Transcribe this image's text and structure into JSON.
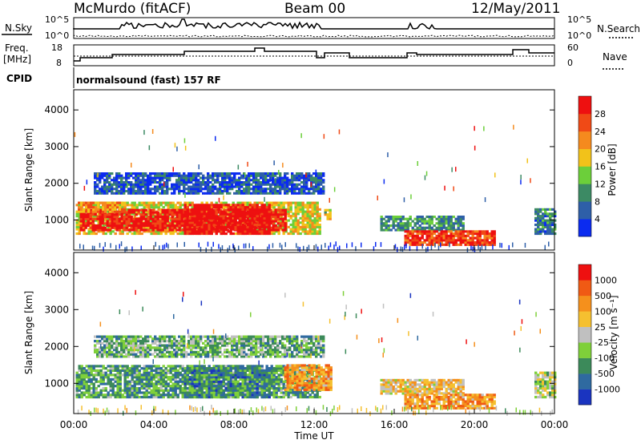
{
  "header": {
    "station": "McMurdo (fitACF)",
    "beam": "Beam 00",
    "date": "12/May/2011"
  },
  "noise_panel": {
    "left_label": "N.Sky",
    "right_label": "N.Search",
    "left_ticks": [
      "10^5",
      "10^0"
    ],
    "right_ticks": [
      "10^5",
      "10^0"
    ]
  },
  "freq_panel": {
    "left_label_1": "Freq.",
    "left_label_2": "[MHz]",
    "left_ticks": [
      "18",
      "8"
    ],
    "right_label": "Nave",
    "right_ticks": [
      "60",
      "0"
    ]
  },
  "cpid_panel": {
    "label": "CPID",
    "text": "normalsound (fast) 157 RF"
  },
  "chart_data": [
    {
      "type": "heatmap",
      "name": "power",
      "ylabel": "Slant Range [km]",
      "yticks": [
        "1000",
        "2000",
        "3000",
        "4000"
      ],
      "ylim": [
        180,
        4550
      ],
      "xlim": [
        0,
        24
      ],
      "colorbar": {
        "label": "Power [dB]",
        "ticks": [
          "4",
          "8",
          "12",
          "16",
          "20",
          "24",
          "28"
        ],
        "colors": [
          "#0b2bf0",
          "#2e5fa8",
          "#3c8a64",
          "#6ccf3a",
          "#f2c21a",
          "#f58a1e",
          "#f04a16",
          "#ee1010"
        ]
      },
      "regions": [
        {
          "t0": 0.1,
          "t1": 12.3,
          "r0": 600,
          "r1": 1500,
          "level": 0.55
        },
        {
          "t0": 0.3,
          "t1": 10.5,
          "r0": 700,
          "r1": 1300,
          "level": 0.95
        },
        {
          "t0": 5.5,
          "t1": 9.8,
          "r0": 600,
          "r1": 1400,
          "level": 1.0
        },
        {
          "t0": 1.0,
          "t1": 12.5,
          "r0": 1700,
          "r1": 2300,
          "level": 0.15
        },
        {
          "t0": 0.2,
          "t1": 2.5,
          "r0": 1200,
          "r1": 1500,
          "level": 0.7
        },
        {
          "t0": 12.5,
          "t1": 12.8,
          "r0": 1000,
          "r1": 1300,
          "level": 0.5
        },
        {
          "t0": 15.3,
          "t1": 19.5,
          "r0": 700,
          "r1": 1100,
          "level": 0.3
        },
        {
          "t0": 16.5,
          "t1": 21.0,
          "r0": 300,
          "r1": 700,
          "level": 0.85
        },
        {
          "t0": 23.0,
          "t1": 24.0,
          "r0": 600,
          "r1": 1300,
          "level": 0.25
        }
      ]
    },
    {
      "type": "heatmap",
      "name": "velocity",
      "ylabel": "Slant Range [km]",
      "yticks": [
        "1000",
        "2000",
        "3000",
        "4000"
      ],
      "ylim": [
        180,
        4550
      ],
      "xlim": [
        0,
        24
      ],
      "xticks": [
        "00:00",
        "04:00",
        "08:00",
        "12:00",
        "16:00",
        "20:00",
        "00:00"
      ],
      "xlabel": "Time UT",
      "colorbar": {
        "label": "Velocity [m s⁻¹]",
        "ticks": [
          "1000",
          "500",
          "100",
          "25",
          "-25",
          "-100",
          "-500",
          "-1000"
        ],
        "colors": [
          "#1a34c0",
          "#2f6aa0",
          "#3c8a5a",
          "#7fd03a",
          "#c0c0c0",
          "#f5c030",
          "#f5901c",
          "#f05a14",
          "#ee1010"
        ]
      },
      "regions": [
        {
          "t0": 0.1,
          "t1": 12.3,
          "r0": 600,
          "r1": 1500,
          "level": 0.3
        },
        {
          "t0": 5.5,
          "t1": 9.8,
          "r0": 600,
          "r1": 1400,
          "level": 0.25
        },
        {
          "t0": 1.0,
          "t1": 12.5,
          "r0": 1700,
          "r1": 2300,
          "level": 0.35
        },
        {
          "t0": 10.5,
          "t1": 12.8,
          "r0": 800,
          "r1": 1500,
          "level": 0.7
        },
        {
          "t0": 15.3,
          "t1": 19.5,
          "r0": 700,
          "r1": 1100,
          "level": 0.6
        },
        {
          "t0": 16.5,
          "t1": 21.0,
          "r0": 300,
          "r1": 700,
          "level": 0.7
        },
        {
          "t0": 23.0,
          "t1": 24.0,
          "r0": 600,
          "r1": 1300,
          "level": 0.45
        }
      ]
    }
  ]
}
